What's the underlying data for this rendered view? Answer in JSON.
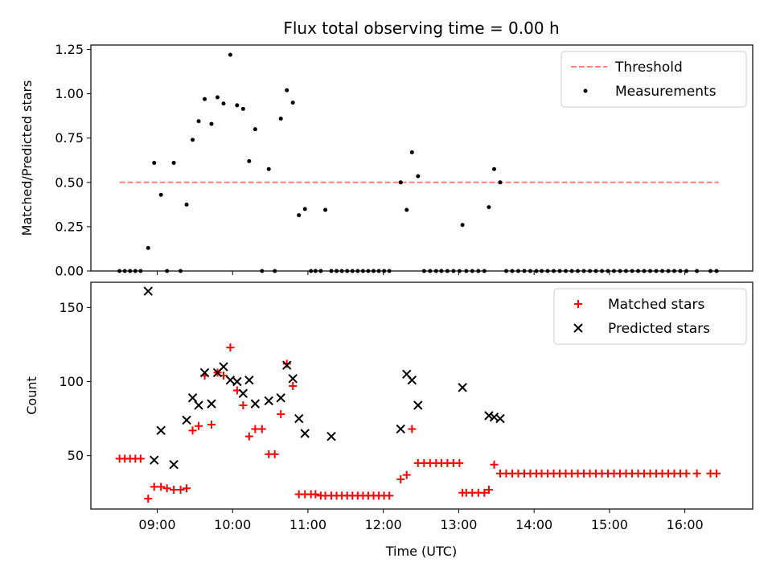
{
  "chart_data": {
    "type": "scatter",
    "title": "Flux total observing time = 0.00 h",
    "xlabel": "Time (UTC)",
    "x_ticks": [
      "09:00",
      "10:00",
      "11:00",
      "12:00",
      "13:00",
      "14:00",
      "15:00",
      "16:00"
    ],
    "x_tick_values": [
      9,
      10,
      11,
      12,
      13,
      14,
      15,
      16
    ],
    "xlim": [
      8.12,
      16.9
    ],
    "panels": [
      {
        "ylabel": "Matched/Predicted stars",
        "ylim": [
          0,
          1.275
        ],
        "y_ticks": [
          "0.00",
          "0.25",
          "0.50",
          "0.75",
          "1.00",
          "1.25"
        ],
        "y_tick_values": [
          0,
          0.25,
          0.5,
          0.75,
          1.0,
          1.25
        ],
        "legend": "top-right",
        "series": [
          {
            "name": "Threshold",
            "kind": "line",
            "color": "#ff7f7f",
            "dash": true,
            "x": [
              8.5,
              16.45
            ],
            "y": [
              0.5,
              0.5
            ]
          },
          {
            "name": "Measurements",
            "kind": "dot",
            "color": "#000000",
            "x": [
              8.5,
              8.57,
              8.64,
              8.71,
              8.78,
              8.88,
              8.96,
              9.05,
              9.13,
              9.22,
              9.31,
              9.39,
              9.47,
              9.55,
              9.63,
              9.72,
              9.8,
              9.88,
              9.97,
              10.06,
              10.14,
              10.22,
              10.3,
              10.39,
              10.48,
              10.56,
              10.64,
              10.72,
              10.8,
              10.88,
              10.96,
              11.04,
              11.1,
              11.17,
              11.23,
              11.31,
              11.38,
              11.45,
              11.52,
              11.59,
              11.66,
              11.73,
              11.8,
              11.87,
              11.94,
              12.01,
              12.08,
              12.23,
              12.31,
              12.38,
              12.46,
              12.54,
              12.62,
              12.7,
              12.77,
              12.85,
              12.93,
              13.01,
              13.05,
              13.1,
              13.18,
              13.26,
              13.34,
              13.4,
              13.47,
              13.55,
              13.63,
              13.71,
              13.79,
              13.87,
              13.95,
              14.03,
              14.1,
              14.18,
              14.26,
              14.34,
              14.42,
              14.5,
              14.58,
              14.66,
              14.74,
              14.82,
              14.9,
              14.98,
              15.06,
              15.14,
              15.22,
              15.3,
              15.38,
              15.46,
              15.54,
              15.62,
              15.7,
              15.78,
              15.86,
              15.94,
              16.02,
              16.16,
              16.34,
              16.42
            ],
            "y": [
              0,
              0,
              0,
              0,
              0,
              0.13,
              0.61,
              0.43,
              0,
              0.61,
              0,
              0.375,
              0.74,
              0.845,
              0.97,
              0.83,
              0.98,
              0.945,
              1.22,
              0.935,
              0.915,
              0.62,
              0.8,
              0,
              0.575,
              0,
              0.86,
              1.02,
              0.95,
              0.315,
              0.35,
              0,
              0,
              0,
              0.345,
              0,
              0,
              0,
              0,
              0,
              0,
              0,
              0,
              0,
              0,
              0,
              0,
              0.5,
              0.345,
              0.67,
              0.535,
              0,
              0,
              0,
              0,
              0,
              0,
              0,
              0.26,
              0,
              0,
              0,
              0,
              0.36,
              0.575,
              0.5,
              0,
              0,
              0,
              0,
              0,
              0,
              0,
              0,
              0,
              0,
              0,
              0,
              0,
              0,
              0,
              0,
              0,
              0,
              0,
              0,
              0,
              0,
              0,
              0,
              0,
              0,
              0,
              0,
              0,
              0,
              0,
              0,
              0,
              0
            ]
          }
        ]
      },
      {
        "ylabel": "Count",
        "ylim": [
          14,
          167
        ],
        "y_ticks": [
          "50",
          "100",
          "150"
        ],
        "y_tick_values": [
          50,
          100,
          150
        ],
        "legend": "top-right",
        "series": [
          {
            "name": "Matched stars",
            "kind": "plus",
            "color": "#ff0000",
            "x": [
              8.5,
              8.57,
              8.64,
              8.71,
              8.78,
              8.88,
              8.96,
              9.05,
              9.13,
              9.22,
              9.31,
              9.39,
              9.47,
              9.55,
              9.63,
              9.72,
              9.8,
              9.88,
              9.97,
              10.06,
              10.14,
              10.22,
              10.3,
              10.39,
              10.48,
              10.56,
              10.64,
              10.72,
              10.8,
              10.88,
              10.96,
              11.04,
              11.1,
              11.17,
              11.23,
              11.31,
              11.38,
              11.45,
              11.52,
              11.59,
              11.66,
              11.73,
              11.8,
              11.87,
              11.94,
              12.01,
              12.08,
              12.23,
              12.31,
              12.38,
              12.46,
              12.54,
              12.62,
              12.7,
              12.77,
              12.85,
              12.93,
              13.01,
              13.05,
              13.1,
              13.18,
              13.26,
              13.34,
              13.4,
              13.47,
              13.55,
              13.63,
              13.71,
              13.79,
              13.87,
              13.95,
              14.03,
              14.1,
              14.18,
              14.26,
              14.34,
              14.42,
              14.5,
              14.58,
              14.66,
              14.74,
              14.82,
              14.9,
              14.98,
              15.06,
              15.14,
              15.22,
              15.3,
              15.38,
              15.46,
              15.54,
              15.62,
              15.7,
              15.78,
              15.86,
              15.94,
              16.02,
              16.16,
              16.34,
              16.42
            ],
            "y": [
              48,
              48,
              48,
              48,
              48,
              21,
              29,
              29,
              28,
              27,
              27,
              28,
              67,
              70,
              104,
              71,
              106,
              104,
              123,
              94,
              84,
              63,
              68,
              68,
              51,
              51,
              78,
              112,
              97,
              24,
              24,
              24,
              24,
              23,
              23,
              23,
              23,
              23,
              23,
              23,
              23,
              23,
              23,
              23,
              23,
              23,
              23,
              34,
              37,
              68,
              45,
              45,
              45,
              45,
              45,
              45,
              45,
              45,
              25,
              25,
              25,
              25,
              25,
              27,
              44,
              38,
              38,
              38,
              38,
              38,
              38,
              38,
              38,
              38,
              38,
              38,
              38,
              38,
              38,
              38,
              38,
              38,
              38,
              38,
              38,
              38,
              38,
              38,
              38,
              38,
              38,
              38,
              38,
              38,
              38,
              38,
              38,
              38,
              38,
              38
            ]
          },
          {
            "name": "Predicted stars",
            "kind": "x",
            "color": "#000000",
            "x": [
              8.88,
              8.96,
              9.05,
              9.22,
              9.39,
              9.47,
              9.55,
              9.63,
              9.72,
              9.8,
              9.88,
              9.97,
              10.06,
              10.14,
              10.22,
              10.3,
              10.48,
              10.64,
              10.72,
              10.8,
              10.88,
              10.96,
              11.31,
              12.23,
              12.31,
              12.38,
              12.46,
              13.05,
              13.4,
              13.47,
              13.55
            ],
            "y": [
              161,
              47,
              67,
              44,
              74,
              89,
              84,
              106,
              85,
              106,
              110,
              101,
              100,
              92,
              101,
              85,
              87,
              89,
              111,
              102,
              75,
              65,
              63,
              68,
              105,
              101,
              84,
              96,
              77,
              76,
              75
            ]
          }
        ]
      }
    ]
  }
}
